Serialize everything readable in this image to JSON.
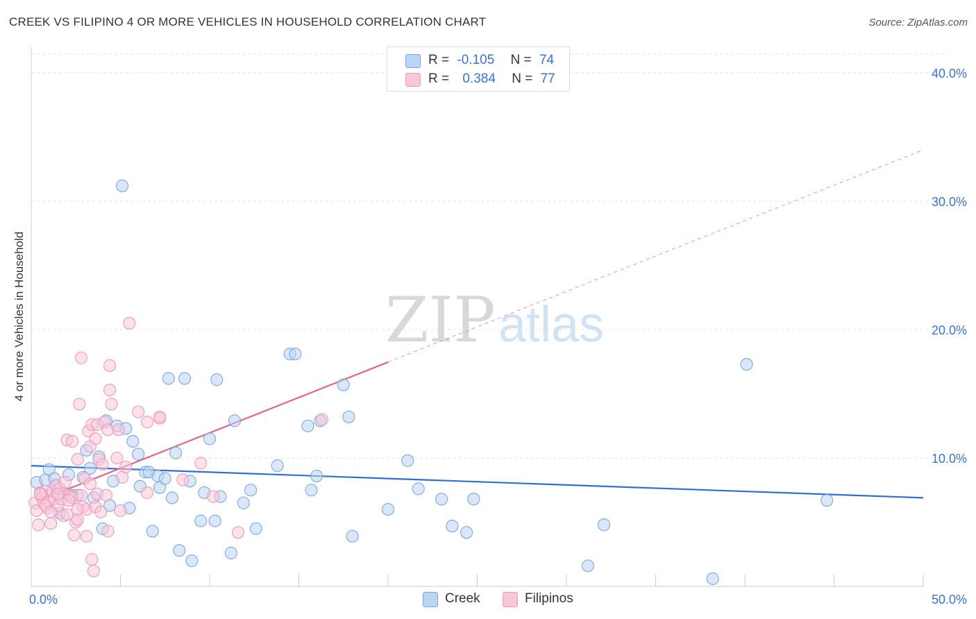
{
  "title": "CREEK VS FILIPINO 4 OR MORE VEHICLES IN HOUSEHOLD CORRELATION CHART",
  "source": "Source: ZipAtlas.com",
  "watermark": {
    "zip": "ZIP",
    "atlas": "atlas"
  },
  "legend": {
    "r_label": "R =",
    "n_label": "N =",
    "rows": [
      {
        "name": "Creek",
        "r": "-0.105",
        "n": "74"
      },
      {
        "name": "Filipinos",
        "r": "0.384",
        "n": "77"
      }
    ]
  },
  "chart_data": {
    "type": "scatter",
    "title": "CREEK VS FILIPINO 4 OR MORE VEHICLES IN HOUSEHOLD CORRELATION CHART",
    "xlabel": "",
    "ylabel": "4 or more Vehicles in Household",
    "xlim": [
      0,
      50
    ],
    "ylim": [
      0,
      42
    ],
    "x_tick_labels": [
      "0.0%",
      "50.0%"
    ],
    "y_ticks": [
      10,
      20,
      30,
      40
    ],
    "y_tick_labels": [
      "10.0%",
      "20.0%",
      "30.0%",
      "40.0%"
    ],
    "grid": true,
    "legend_position": "bottom-center",
    "series": [
      {
        "name": "Creek",
        "color": "#7aa7e0",
        "fill": "#bcd4f3",
        "trend": {
          "x0": 0,
          "y0": 9.4,
          "x1": 50,
          "y1": 6.9,
          "solid_until": 50,
          "color": "#2f6fd0"
        },
        "points": [
          [
            0.3,
            8.1
          ],
          [
            0.6,
            7.2
          ],
          [
            0.8,
            8.3
          ],
          [
            1,
            9.1
          ],
          [
            1.2,
            7.4
          ],
          [
            1.3,
            8.4
          ],
          [
            1.4,
            7.8
          ],
          [
            1.6,
            5.7
          ],
          [
            1.8,
            7.3
          ],
          [
            2.1,
            8.7
          ],
          [
            2.3,
            7.1
          ],
          [
            2.6,
            7.1
          ],
          [
            2.9,
            8.5
          ],
          [
            3.1,
            10.6
          ],
          [
            3.3,
            9.2
          ],
          [
            3.5,
            6.9
          ],
          [
            3.8,
            10.1
          ],
          [
            4.0,
            4.5
          ],
          [
            4.2,
            12.9
          ],
          [
            4.4,
            6.3
          ],
          [
            4.6,
            8.2
          ],
          [
            4.8,
            12.5
          ],
          [
            5.1,
            31.2
          ],
          [
            5.3,
            12.3
          ],
          [
            5.5,
            6.1
          ],
          [
            5.7,
            11.3
          ],
          [
            6.0,
            10.3
          ],
          [
            6.1,
            7.8
          ],
          [
            6.4,
            8.9
          ],
          [
            6.6,
            8.9
          ],
          [
            6.8,
            4.3
          ],
          [
            7.1,
            8.6
          ],
          [
            7.2,
            7.7
          ],
          [
            7.5,
            8.4
          ],
          [
            7.7,
            16.2
          ],
          [
            7.9,
            6.9
          ],
          [
            8.1,
            10.4
          ],
          [
            8.3,
            2.8
          ],
          [
            8.6,
            16.2
          ],
          [
            8.9,
            8.2
          ],
          [
            9.0,
            2.0
          ],
          [
            9.5,
            5.1
          ],
          [
            9.7,
            7.3
          ],
          [
            10.0,
            11.5
          ],
          [
            10.3,
            5.1
          ],
          [
            10.4,
            16.1
          ],
          [
            10.6,
            7.0
          ],
          [
            11.2,
            2.6
          ],
          [
            11.4,
            12.9
          ],
          [
            11.9,
            6.5
          ],
          [
            12.3,
            7.5
          ],
          [
            12.6,
            4.5
          ],
          [
            13.8,
            9.4
          ],
          [
            14.5,
            18.1
          ],
          [
            14.8,
            18.1
          ],
          [
            15.7,
            7.5
          ],
          [
            16.0,
            8.6
          ],
          [
            16.2,
            12.9
          ],
          [
            15.5,
            12.5
          ],
          [
            17.5,
            15.7
          ],
          [
            17.8,
            13.2
          ],
          [
            18.0,
            3.9
          ],
          [
            20.0,
            6.0
          ],
          [
            21.1,
            9.8
          ],
          [
            21.7,
            7.6
          ],
          [
            23.0,
            6.8
          ],
          [
            23.6,
            4.7
          ],
          [
            24.4,
            4.2
          ],
          [
            24.8,
            6.8
          ],
          [
            31.2,
            1.6
          ],
          [
            32.1,
            4.8
          ],
          [
            38.2,
            0.6
          ],
          [
            40.1,
            17.3
          ],
          [
            44.6,
            6.7
          ]
        ]
      },
      {
        "name": "Filipinos",
        "color": "#f09ab5",
        "fill": "#f8c8d8",
        "trend": {
          "x0": 1.0,
          "y0": 7.0,
          "x1": 50,
          "y1": 34.0,
          "solid_until": 20,
          "color": "#e0648c"
        },
        "points": [
          [
            0.2,
            6.5
          ],
          [
            0.3,
            5.9
          ],
          [
            0.4,
            4.8
          ],
          [
            0.5,
            7.3
          ],
          [
            0.6,
            6.9
          ],
          [
            0.7,
            6.5
          ],
          [
            0.8,
            7.4
          ],
          [
            0.9,
            6.1
          ],
          [
            1.0,
            6.6
          ],
          [
            1.1,
            4.9
          ],
          [
            1.2,
            7.4
          ],
          [
            1.3,
            6.8
          ],
          [
            1.4,
            7.9
          ],
          [
            1.5,
            6.3
          ],
          [
            1.6,
            7.6
          ],
          [
            1.7,
            6.8
          ],
          [
            1.8,
            5.5
          ],
          [
            1.9,
            8.1
          ],
          [
            2.0,
            5.6
          ],
          [
            2.0,
            11.4
          ],
          [
            2.1,
            7.1
          ],
          [
            2.2,
            7.0
          ],
          [
            2.3,
            6.9
          ],
          [
            2.3,
            11.3
          ],
          [
            2.4,
            4.0
          ],
          [
            2.5,
            5.0
          ],
          [
            2.6,
            5.2
          ],
          [
            2.6,
            9.9
          ],
          [
            2.7,
            14.2
          ],
          [
            2.8,
            7.1
          ],
          [
            2.8,
            17.8
          ],
          [
            2.9,
            6.2
          ],
          [
            3.0,
            8.4
          ],
          [
            3.1,
            6.0
          ],
          [
            3.1,
            3.9
          ],
          [
            3.2,
            12.1
          ],
          [
            3.3,
            10.9
          ],
          [
            3.3,
            8.0
          ],
          [
            3.4,
            12.6
          ],
          [
            3.4,
            2.1
          ],
          [
            3.5,
            1.2
          ],
          [
            3.6,
            11.5
          ],
          [
            3.6,
            6.2
          ],
          [
            3.7,
            7.2
          ],
          [
            3.7,
            12.6
          ],
          [
            3.8,
            9.9
          ],
          [
            3.9,
            5.8
          ],
          [
            4.0,
            9.5
          ],
          [
            4.1,
            12.8
          ],
          [
            4.2,
            7.1
          ],
          [
            4.3,
            12.2
          ],
          [
            4.3,
            4.3
          ],
          [
            4.4,
            17.2
          ],
          [
            4.4,
            15.3
          ],
          [
            4.5,
            14.2
          ],
          [
            4.8,
            10.0
          ],
          [
            4.9,
            12.2
          ],
          [
            5.0,
            5.9
          ],
          [
            5.1,
            8.5
          ],
          [
            5.3,
            9.3
          ],
          [
            5.5,
            20.5
          ],
          [
            6.0,
            13.6
          ],
          [
            6.5,
            12.8
          ],
          [
            6.5,
            7.3
          ],
          [
            7.2,
            13.1
          ],
          [
            7.2,
            13.2
          ],
          [
            8.5,
            8.3
          ],
          [
            9.5,
            9.6
          ],
          [
            10.2,
            7.0
          ],
          [
            11.6,
            4.2
          ],
          [
            16.3,
            13.0
          ],
          [
            0.5,
            7.2
          ],
          [
            0.8,
            6.3
          ],
          [
            1.1,
            5.8
          ],
          [
            1.5,
            7.2
          ],
          [
            2.1,
            6.7
          ],
          [
            2.6,
            6.0
          ]
        ]
      }
    ]
  }
}
